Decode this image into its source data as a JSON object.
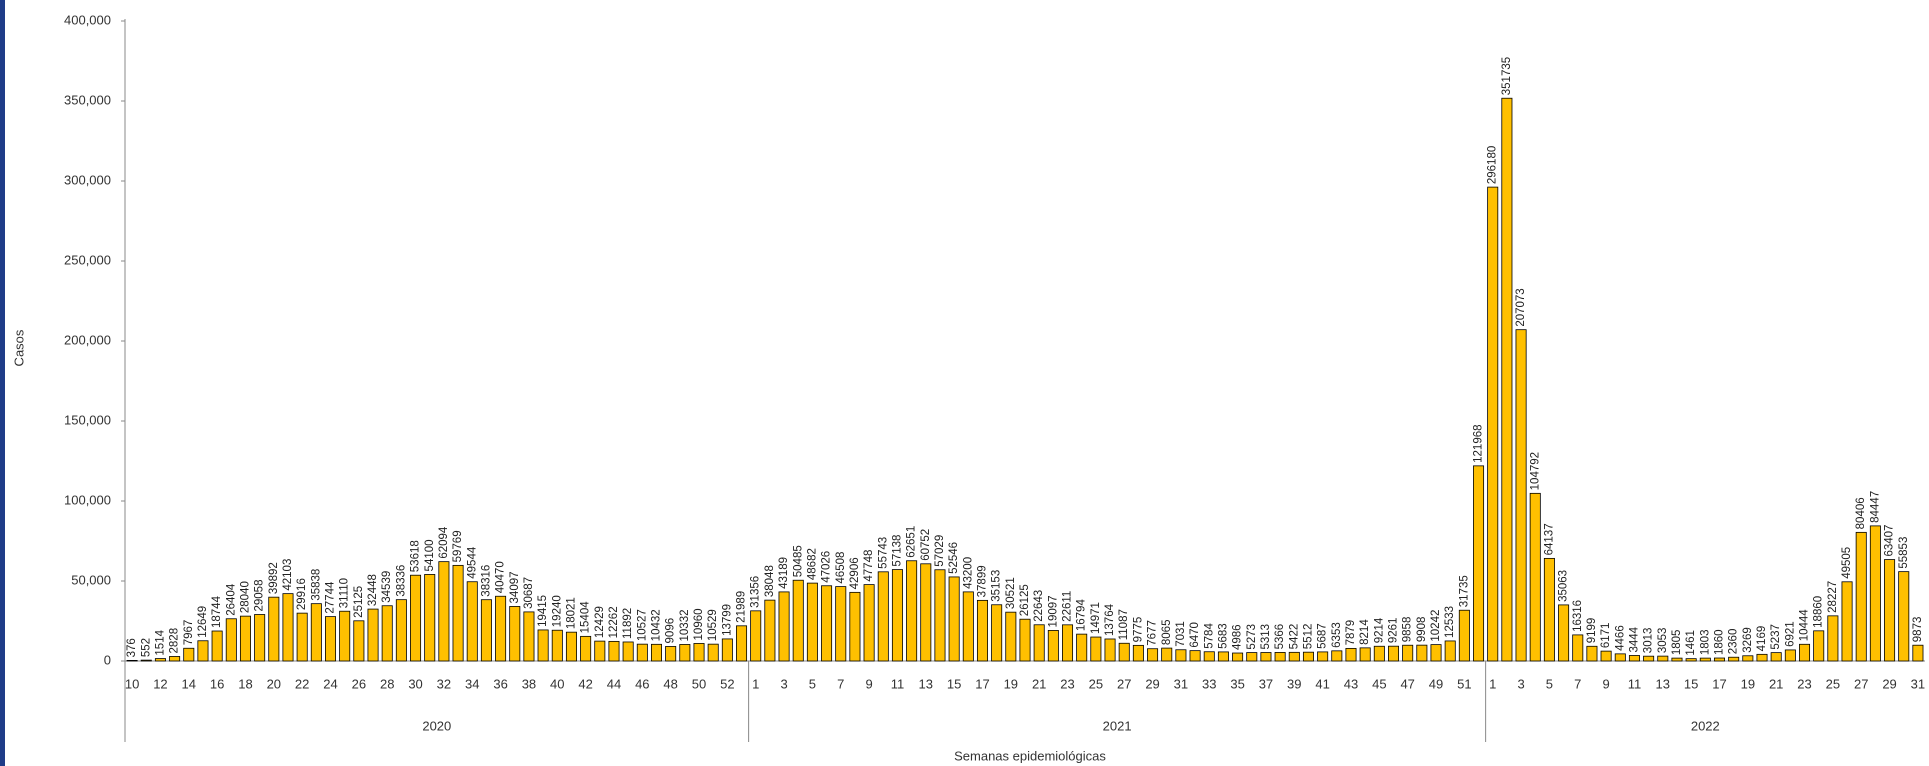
{
  "chart_data": {
    "type": "bar",
    "ylabel": "Casos",
    "xlabel": "Semanas epidemiológicas",
    "color": "#ffc000",
    "edge_color": "#000000",
    "grid": false,
    "ylim": [
      0,
      400000
    ],
    "yticks": [
      0,
      {
        "value": 50000,
        "label": "50,000"
      },
      {
        "value": 100000,
        "label": "100,000"
      },
      {
        "value": 150000,
        "label": "150,000"
      },
      {
        "value": 200000,
        "label": "200,000"
      },
      {
        "value": 250000,
        "label": "250,000"
      },
      {
        "value": 300000,
        "label": "300,000"
      },
      {
        "value": 350000,
        "label": "350,000"
      },
      {
        "value": 400000,
        "label": "400,000"
      }
    ],
    "groups": [
      {
        "name": "2020",
        "categories": [
          10,
          null,
          12,
          null,
          14,
          null,
          16,
          null,
          18,
          null,
          20,
          null,
          22,
          null,
          24,
          null,
          26,
          null,
          28,
          null,
          30,
          null,
          32,
          null,
          34,
          null,
          36,
          null,
          38,
          null,
          40,
          null,
          42,
          null,
          44,
          null,
          46,
          null,
          48,
          null,
          50,
          null,
          52,
          null
        ],
        "values": [
          376,
          552,
          1514,
          2828,
          7967,
          12649,
          18744,
          26404,
          28040,
          29058,
          39892,
          42103,
          29916,
          35838,
          27744,
          31110,
          25125,
          32448,
          34539,
          38336,
          53618,
          54100,
          62094,
          59769,
          49544,
          38316,
          40470,
          34097,
          30687,
          19415,
          19240,
          18021,
          15404,
          12429,
          12262,
          11892,
          10527,
          10432,
          9096,
          10332,
          10960,
          10529,
          13799,
          21989
        ]
      },
      {
        "name": "2021",
        "categories": [
          1,
          null,
          3,
          null,
          5,
          null,
          7,
          null,
          9,
          null,
          11,
          null,
          13,
          null,
          15,
          null,
          17,
          null,
          19,
          null,
          21,
          null,
          23,
          null,
          25,
          null,
          27,
          null,
          29,
          null,
          31,
          null,
          33,
          null,
          35,
          null,
          37,
          null,
          39,
          null,
          41,
          null,
          43,
          null,
          45,
          null,
          47,
          null,
          49,
          null,
          51,
          null
        ],
        "values": [
          31356,
          38048,
          43189,
          50485,
          48682,
          47026,
          46508,
          42906,
          47748,
          55743,
          57138,
          62651,
          60752,
          57029,
          52546,
          43200,
          37899,
          35153,
          30521,
          26125,
          22643,
          19097,
          22611,
          16794,
          14971,
          13764,
          11087,
          9775,
          7677,
          8065,
          7031,
          6470,
          5784,
          5683,
          4986,
          5273,
          5313,
          5366,
          5422,
          5512,
          5687,
          6353,
          7879,
          8214,
          9214,
          9261,
          9858,
          9908,
          10242,
          12533,
          31735,
          121968
        ]
      },
      {
        "name": "2022",
        "categories": [
          1,
          null,
          3,
          null,
          5,
          null,
          7,
          null,
          9,
          null,
          11,
          null,
          13,
          null,
          15,
          null,
          17,
          null,
          19,
          null,
          21,
          null,
          23,
          null,
          25,
          null,
          27,
          null,
          29,
          null,
          31
        ],
        "values": [
          296180,
          351735,
          207073,
          104792,
          64137,
          35063,
          16316,
          9199,
          6171,
          4466,
          3444,
          3013,
          3053,
          1805,
          1461,
          1803,
          1860,
          2360,
          3269,
          4169,
          5237,
          6921,
          10444,
          18860,
          28227,
          49505,
          80406,
          84447,
          63407,
          55853,
          9873
        ]
      }
    ]
  }
}
